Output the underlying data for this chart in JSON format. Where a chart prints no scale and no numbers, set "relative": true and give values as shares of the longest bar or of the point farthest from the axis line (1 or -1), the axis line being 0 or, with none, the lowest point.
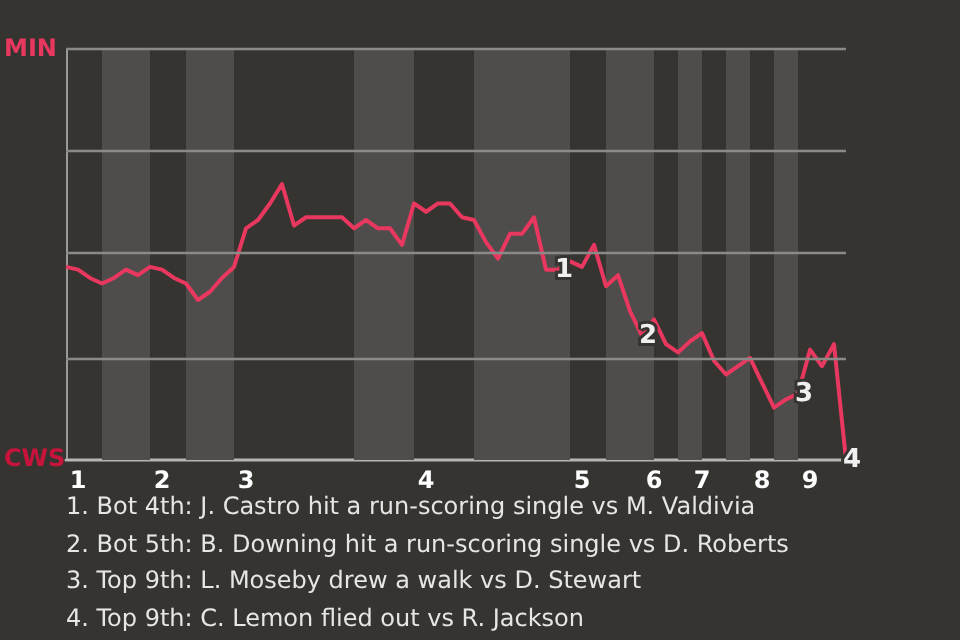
{
  "chart_data": {
    "type": "line",
    "relative": true,
    "categories": [
      null,
      "1",
      null,
      null,
      null,
      null,
      null,
      null,
      "2",
      null,
      null,
      null,
      null,
      null,
      null,
      "3",
      null,
      null,
      null,
      null,
      null,
      null,
      null,
      null,
      null,
      null,
      null,
      null,
      null,
      null,
      "4",
      null,
      null,
      null,
      null,
      null,
      null,
      null,
      null,
      null,
      null,
      null,
      null,
      "5",
      null,
      null,
      null,
      null,
      null,
      "6",
      null,
      null,
      null,
      "7",
      null,
      null,
      null,
      null,
      "8",
      null,
      null,
      null,
      "9",
      null,
      null,
      null
    ],
    "series": [
      {
        "color": "#e8385f",
        "values": [
          0.7,
          0.69,
          0.66,
          0.64,
          0.66,
          0.69,
          0.67,
          0.7,
          0.69,
          0.66,
          0.64,
          0.58,
          0.61,
          0.66,
          0.7,
          0.84,
          0.87,
          0.93,
          1,
          0.85,
          0.88,
          0.88,
          0.88,
          0.88,
          0.84,
          0.87,
          0.84,
          0.84,
          0.78,
          0.93,
          0.9,
          0.93,
          0.93,
          0.88,
          0.87,
          0.79,
          0.73,
          0.82,
          0.82,
          0.88,
          0.69,
          0.69,
          0.72,
          0.7,
          0.78,
          0.63,
          0.67,
          0.54,
          0.45,
          0.51,
          0.42,
          0.39,
          0.43,
          0.46,
          0.36,
          0.31,
          0.34,
          0.37,
          0.28,
          0.19,
          0.22,
          0.24,
          0.4,
          0.34,
          0.42,
          0
        ]
      }
    ],
    "marker": "none",
    "ref_lines": [
      {
        "axis": "y",
        "value": 0.37,
        "color": "#8a8a88",
        "line_style": "solid"
      },
      {
        "axis": "y",
        "value": 0.75,
        "color": "#8a8a88",
        "line_style": "solid"
      },
      {
        "axis": "y",
        "value": 1.12,
        "color": "#8a8a88",
        "line_style": "solid"
      },
      {
        "axis": "y",
        "value": 1.49,
        "color": "#8a8a88",
        "line_style": "solid"
      }
    ],
    "annotations": [
      "MIN",
      "CWS",
      {
        "text": "1",
        "y": 0.69
      },
      {
        "text": "2",
        "y": 0.45
      },
      {
        "text": "3",
        "y": 0.24
      },
      {
        "text": "4",
        "y": 0
      },
      "1. Bot 4th: J. Castro hit a run-scoring single vs M. Valdivia",
      "2. Bot 5th: B. Downing hit a run-scoring single vs D. Roberts",
      "3. Top 9th: L. Moseby drew a walk vs D. Stewart",
      "4. Top 9th: C. Lemon flied out vs R. Jackson"
    ]
  }
}
